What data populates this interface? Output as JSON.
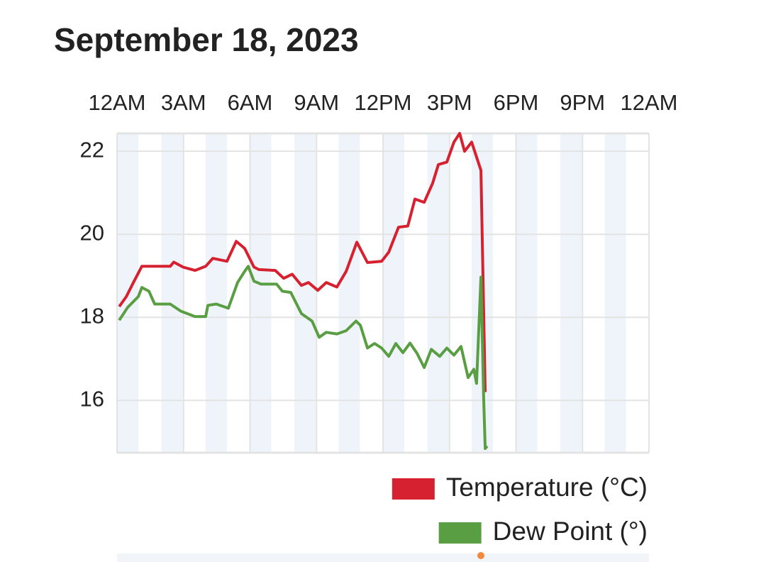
{
  "chart_data": {
    "type": "line",
    "title": "September 18, 2023",
    "xlim": [
      0,
      24
    ],
    "xticks": [
      {
        "value": 0,
        "label": "12AM"
      },
      {
        "value": 3,
        "label": "3AM"
      },
      {
        "value": 6,
        "label": "6AM"
      },
      {
        "value": 9,
        "label": "9AM"
      },
      {
        "value": 12,
        "label": "12PM"
      },
      {
        "value": 15,
        "label": "3PM"
      },
      {
        "value": 18,
        "label": "6PM"
      },
      {
        "value": 21,
        "label": "9PM"
      },
      {
        "value": 24,
        "label": "12AM"
      }
    ],
    "ylim": [
      14.74,
      22.43
    ],
    "yticks": [
      16,
      18,
      20,
      22
    ],
    "grid": true,
    "legend_position": "bottom-right",
    "series": [
      {
        "name": "Temperature (°C)",
        "color": "#d62130",
        "x": [
          0.1,
          0.42,
          0.74,
          1.12,
          1.6,
          2.4,
          2.56,
          2.98,
          3.52,
          4.0,
          4.32,
          4.96,
          5.38,
          5.76,
          6.18,
          6.4,
          7.14,
          7.52,
          7.9,
          8.32,
          8.64,
          9.06,
          9.44,
          9.92,
          10.34,
          10.82,
          11.3,
          11.94,
          12.26,
          12.7,
          13.12,
          13.44,
          13.86,
          14.24,
          14.5,
          14.88,
          15.2,
          15.46,
          15.68,
          16.0,
          16.42,
          16.61
        ],
        "values": [
          18.26,
          18.5,
          18.84,
          19.23,
          19.23,
          19.23,
          19.33,
          19.21,
          19.13,
          19.23,
          19.42,
          19.35,
          19.83,
          19.66,
          19.21,
          19.15,
          19.13,
          18.94,
          19.04,
          18.77,
          18.84,
          18.65,
          18.84,
          18.73,
          19.11,
          19.81,
          19.32,
          19.35,
          19.57,
          20.17,
          20.2,
          20.85,
          20.77,
          21.23,
          21.68,
          21.74,
          22.22,
          22.43,
          22.0,
          22.22,
          21.54,
          16.2
        ]
      },
      {
        "name": "Dew Point (°)",
        "color": "#5a9e44",
        "x": [
          0.1,
          0.48,
          0.96,
          1.12,
          1.44,
          1.7,
          2.4,
          2.88,
          3.52,
          4.0,
          4.1,
          4.48,
          5.02,
          5.44,
          5.76,
          5.92,
          6.18,
          6.5,
          7.2,
          7.46,
          7.84,
          8.32,
          8.8,
          9.12,
          9.44,
          9.92,
          10.34,
          10.78,
          10.98,
          11.3,
          11.62,
          11.94,
          12.26,
          12.58,
          12.9,
          13.22,
          13.54,
          13.86,
          14.18,
          14.56,
          14.88,
          15.2,
          15.52,
          15.84,
          16.1,
          16.22,
          16.42,
          16.54,
          16.61,
          16.7
        ],
        "values": [
          17.93,
          18.24,
          18.5,
          18.72,
          18.63,
          18.32,
          18.32,
          18.15,
          18.02,
          18.02,
          18.29,
          18.32,
          18.22,
          18.84,
          19.11,
          19.23,
          18.87,
          18.8,
          18.8,
          18.63,
          18.6,
          18.09,
          17.91,
          17.52,
          17.64,
          17.6,
          17.68,
          17.91,
          17.81,
          17.26,
          17.37,
          17.26,
          17.06,
          17.37,
          17.15,
          17.38,
          17.13,
          16.79,
          17.23,
          17.06,
          17.26,
          17.09,
          17.3,
          16.55,
          16.75,
          16.41,
          18.97,
          16.07,
          14.84,
          14.9
        ]
      }
    ]
  }
}
